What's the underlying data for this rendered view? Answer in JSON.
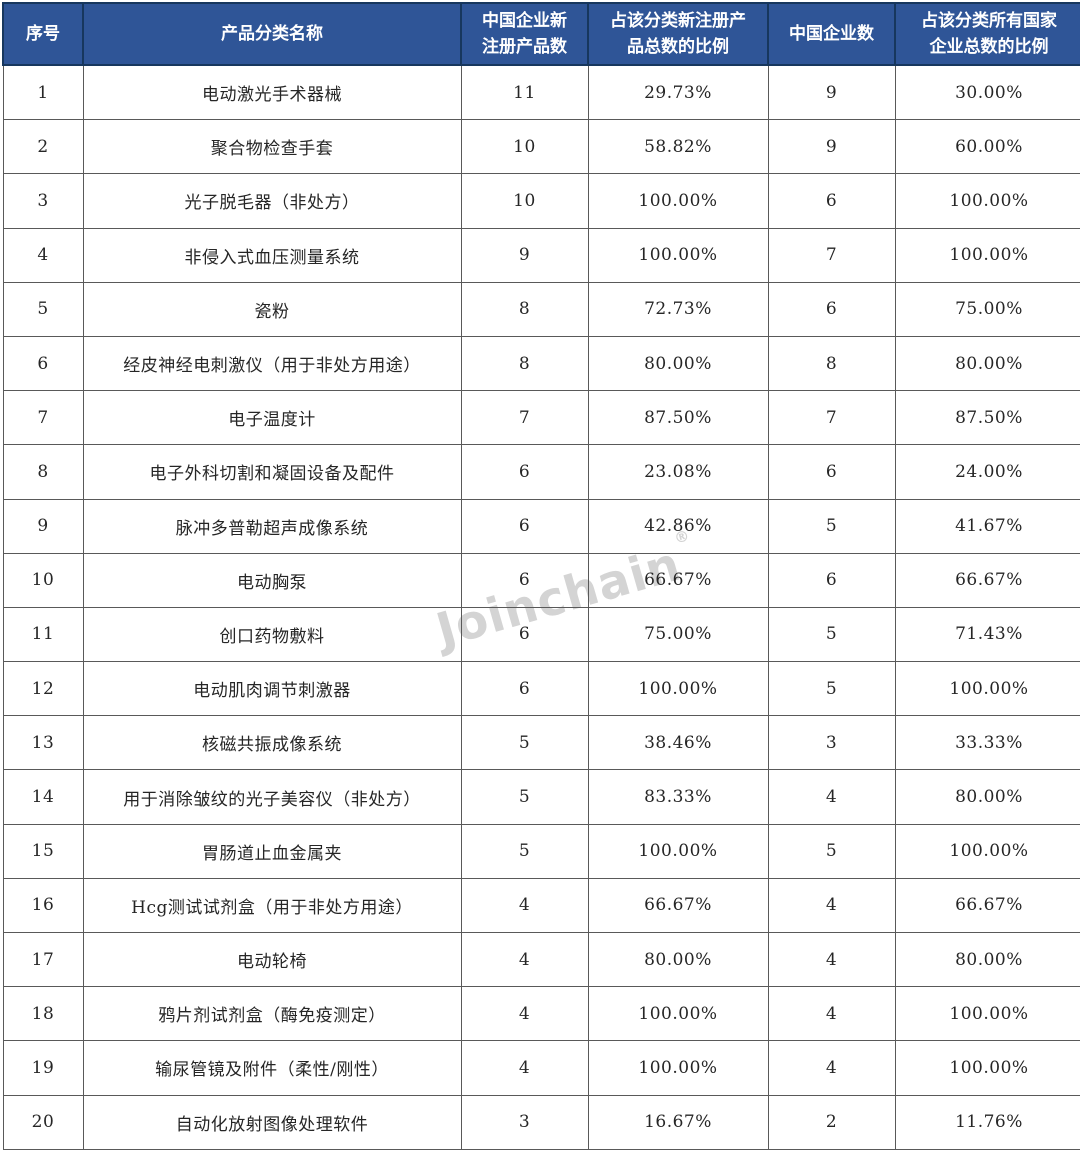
{
  "header": {
    "col1": "序号",
    "col2": "产品分类名称",
    "col3_line1": "中国企业新",
    "col3_line2": "注册产品数",
    "col4_line1": "占该分类新注册产",
    "col4_line2": "品总数的比例",
    "col5": "中国企业数",
    "col6_line1": "占该分类所有国家",
    "col6_line2": "企业总数的比例"
  },
  "watermark": {
    "text": "Joinchain",
    "registered_mark": "®"
  },
  "colors": {
    "header_bg": "#2F5597",
    "header_text": "#FFFFFF",
    "header_border": "#17375E",
    "body_border": "#595959",
    "body_text": "#262626",
    "watermark": "#D4D4D4"
  },
  "chart_data": {
    "type": "table",
    "columns": [
      "序号",
      "产品分类名称",
      "中国企业新注册产品数",
      "占该分类新注册产品总数的比例",
      "中国企业数",
      "占该分类所有国家企业总数的比例"
    ],
    "rows": [
      {
        "no": "1",
        "name": "电动激光手术器械",
        "new_products": "11",
        "new_ratio": "29.73%",
        "companies": "9",
        "company_ratio": "30.00%"
      },
      {
        "no": "2",
        "name": "聚合物检查手套",
        "new_products": "10",
        "new_ratio": "58.82%",
        "companies": "9",
        "company_ratio": "60.00%"
      },
      {
        "no": "3",
        "name": "光子脱毛器（非处方）",
        "new_products": "10",
        "new_ratio": "100.00%",
        "companies": "6",
        "company_ratio": "100.00%"
      },
      {
        "no": "4",
        "name": "非侵入式血压测量系统",
        "new_products": "9",
        "new_ratio": "100.00%",
        "companies": "7",
        "company_ratio": "100.00%"
      },
      {
        "no": "5",
        "name": "瓷粉",
        "new_products": "8",
        "new_ratio": "72.73%",
        "companies": "6",
        "company_ratio": "75.00%"
      },
      {
        "no": "6",
        "name": "经皮神经电刺激仪（用于非处方用途）",
        "new_products": "8",
        "new_ratio": "80.00%",
        "companies": "8",
        "company_ratio": "80.00%"
      },
      {
        "no": "7",
        "name": "电子温度计",
        "new_products": "7",
        "new_ratio": "87.50%",
        "companies": "7",
        "company_ratio": "87.50%"
      },
      {
        "no": "8",
        "name": "电子外科切割和凝固设备及配件",
        "new_products": "6",
        "new_ratio": "23.08%",
        "companies": "6",
        "company_ratio": "24.00%"
      },
      {
        "no": "9",
        "name": "脉冲多普勒超声成像系统",
        "new_products": "6",
        "new_ratio": "42.86%",
        "companies": "5",
        "company_ratio": "41.67%"
      },
      {
        "no": "10",
        "name": "电动胸泵",
        "new_products": "6",
        "new_ratio": "66.67%",
        "companies": "6",
        "company_ratio": "66.67%"
      },
      {
        "no": "11",
        "name": "创口药物敷料",
        "new_products": "6",
        "new_ratio": "75.00%",
        "companies": "5",
        "company_ratio": "71.43%"
      },
      {
        "no": "12",
        "name": "电动肌肉调节刺激器",
        "new_products": "6",
        "new_ratio": "100.00%",
        "companies": "5",
        "company_ratio": "100.00%"
      },
      {
        "no": "13",
        "name": "核磁共振成像系统",
        "new_products": "5",
        "new_ratio": "38.46%",
        "companies": "3",
        "company_ratio": "33.33%"
      },
      {
        "no": "14",
        "name": "用于消除皱纹的光子美容仪（非处方）",
        "new_products": "5",
        "new_ratio": "83.33%",
        "companies": "4",
        "company_ratio": "80.00%"
      },
      {
        "no": "15",
        "name": "胃肠道止血金属夹",
        "new_products": "5",
        "new_ratio": "100.00%",
        "companies": "5",
        "company_ratio": "100.00%"
      },
      {
        "no": "16",
        "name": "Hcg测试试剂盒（用于非处方用途）",
        "new_products": "4",
        "new_ratio": "66.67%",
        "companies": "4",
        "company_ratio": "66.67%"
      },
      {
        "no": "17",
        "name": "电动轮椅",
        "new_products": "4",
        "new_ratio": "80.00%",
        "companies": "4",
        "company_ratio": "80.00%"
      },
      {
        "no": "18",
        "name": "鸦片剂试剂盒（酶免疫测定）",
        "new_products": "4",
        "new_ratio": "100.00%",
        "companies": "4",
        "company_ratio": "100.00%"
      },
      {
        "no": "19",
        "name": "输尿管镜及附件（柔性/刚性）",
        "new_products": "4",
        "new_ratio": "100.00%",
        "companies": "4",
        "company_ratio": "100.00%"
      },
      {
        "no": "20",
        "name": "自动化放射图像处理软件",
        "new_products": "3",
        "new_ratio": "16.67%",
        "companies": "2",
        "company_ratio": "11.76%"
      }
    ]
  }
}
